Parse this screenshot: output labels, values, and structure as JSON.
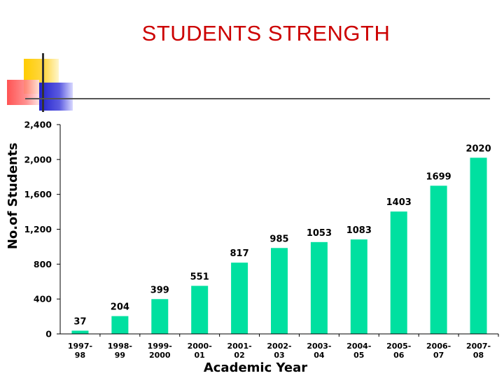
{
  "slide": {
    "title": "STUDENTS STRENGTH"
  },
  "colors": {
    "title": "#cc0000",
    "bar": "#00e0a0",
    "deco_yellow": "#ffcc00",
    "deco_blue": "#2222cc",
    "deco_red": "#ff4444",
    "deco_line": "#333333"
  },
  "chart_data": {
    "type": "bar",
    "title": "",
    "xlabel": "Academic Year",
    "ylabel": "No.of Students",
    "ylim": [
      0,
      2400
    ],
    "yticks": [
      "0",
      "400",
      "800",
      "1,200",
      "1,600",
      "2,000",
      "2,400"
    ],
    "grid": false,
    "legend": "none",
    "categories": [
      [
        "1997-",
        "98"
      ],
      [
        "1998-",
        "99"
      ],
      [
        "1999-",
        "2000"
      ],
      [
        "2000-",
        "01"
      ],
      [
        "2001-",
        "02"
      ],
      [
        "2002-",
        "03"
      ],
      [
        "2003-",
        "04"
      ],
      [
        "2004-",
        "05"
      ],
      [
        "2005-",
        "06"
      ],
      [
        "2006-",
        "07"
      ],
      [
        "2007-",
        "08"
      ]
    ],
    "values": [
      37,
      204,
      399,
      551,
      817,
      985,
      1053,
      1083,
      1403,
      1699,
      2020
    ],
    "data_labels": [
      "37",
      "204",
      "399",
      "551",
      "817",
      "985",
      "1053",
      "1083",
      "1403",
      "1699",
      "2020"
    ]
  }
}
